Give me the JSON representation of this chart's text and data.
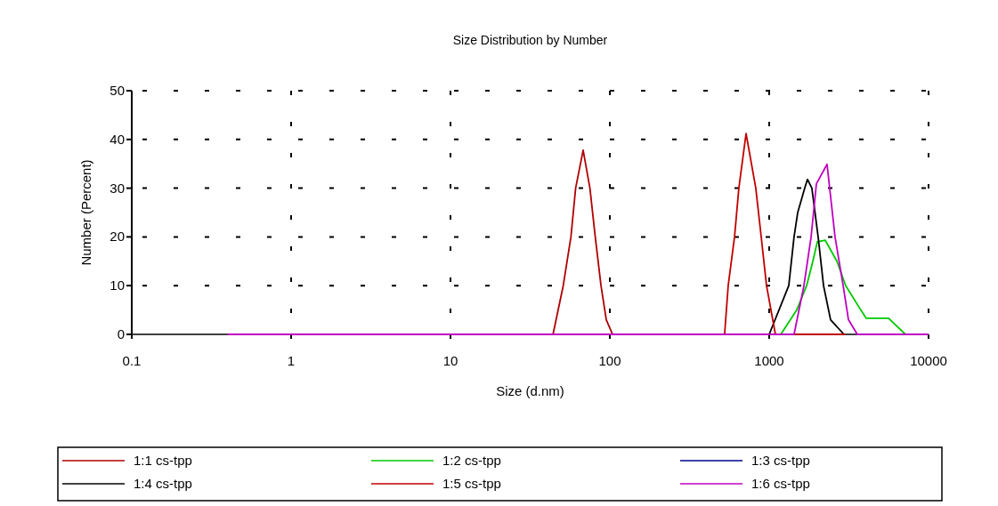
{
  "chart_data": {
    "type": "line",
    "title": "Size Distribution by Number",
    "xlabel": "Size (d.nm)",
    "ylabel": "Number (Percent)",
    "log": "x",
    "xlim": [
      0.1,
      10000
    ],
    "xticks": [
      0.1,
      1,
      10,
      100,
      1000,
      10000
    ],
    "ylim": [
      0,
      50
    ],
    "yticks": [
      0,
      10,
      20,
      30,
      40,
      50
    ],
    "grid": true,
    "legend": "bottom",
    "marker": "none",
    "line_style": "solid",
    "series": [
      {
        "name": "1:1 cs-tpp",
        "color": "#b00000",
        "x": [
          44,
          51,
          57,
          61,
          68,
          75,
          81,
          88,
          95,
          104
        ],
        "values": [
          0,
          10,
          20,
          30,
          37.8,
          30,
          20,
          10,
          3,
          0
        ]
      },
      {
        "name": "1:2 cs-tpp",
        "color": "#00c800",
        "x": [
          1183,
          1489,
          1718,
          1879,
          2005,
          2249,
          2661,
          3020,
          3758,
          4064,
          5610,
          7161
        ],
        "values": [
          0,
          5,
          10,
          15,
          19,
          19.3,
          15,
          10,
          5,
          3.3,
          3.3,
          0
        ]
      },
      {
        "name": "1:3 cs-tpp",
        "color": "#000090"
      },
      {
        "name": "1:4 cs-tpp",
        "color": "#000000",
        "x": [
          1000,
          1327,
          1432,
          1510,
          1671,
          1738,
          1853,
          2028,
          2193,
          2428,
          2944
        ],
        "values": [
          0,
          10,
          20,
          25,
          30,
          31.8,
          30,
          20,
          10,
          3,
          0
        ]
      },
      {
        "name": "1:5 cs-tpp",
        "color": "#c00000",
        "x": [
          525,
          553,
          606,
          645,
          716,
          824,
          891,
          962,
          1094,
          3000
        ],
        "values": [
          0,
          10,
          20,
          30,
          41.2,
          30,
          20,
          10,
          0,
          0
        ]
      },
      {
        "name": "1:6 cs-tpp",
        "color": "#c000c0",
        "x": [
          0.4,
          1432,
          1652,
          1832,
          1978,
          2307,
          2589,
          2911,
          3144,
          3573,
          10000
        ],
        "values": [
          0,
          0,
          10,
          20,
          30.9,
          34.9,
          20,
          10,
          3,
          0,
          0
        ]
      }
    ]
  }
}
